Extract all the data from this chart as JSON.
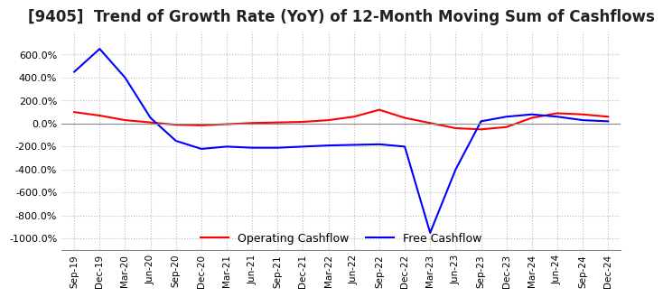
{
  "title": "[9405]  Trend of Growth Rate (YoY) of 12-Month Moving Sum of Cashflows",
  "x_labels": [
    "Sep-19",
    "Dec-19",
    "Mar-20",
    "Jun-20",
    "Sep-20",
    "Dec-20",
    "Mar-21",
    "Jun-21",
    "Sep-21",
    "Dec-21",
    "Mar-22",
    "Jun-22",
    "Sep-22",
    "Dec-22",
    "Mar-23",
    "Jun-23",
    "Sep-23",
    "Dec-23",
    "Mar-24",
    "Jun-24",
    "Sep-24",
    "Dec-24"
  ],
  "operating_cashflow": [
    100,
    70,
    30,
    10,
    -10,
    -15,
    -5,
    5,
    10,
    15,
    30,
    60,
    120,
    50,
    5,
    -40,
    -50,
    -30,
    50,
    90,
    80,
    60
  ],
  "free_cashflow": [
    450,
    650,
    400,
    50,
    -150,
    -220,
    -200,
    -210,
    -210,
    -200,
    -190,
    -185,
    -180,
    -200,
    -950,
    -400,
    20,
    60,
    80,
    60,
    30,
    20
  ],
  "ylim": [
    -1100,
    800
  ],
  "yticks": [
    600,
    400,
    200,
    0,
    -200,
    -400,
    -600,
    -800,
    -1000
  ],
  "operating_color": "#FF0000",
  "free_color": "#0000FF",
  "grid_color": "#BBBBBB",
  "background_color": "#FFFFFF",
  "title_fontsize": 12,
  "legend_labels": [
    "Operating Cashflow",
    "Free Cashflow"
  ]
}
